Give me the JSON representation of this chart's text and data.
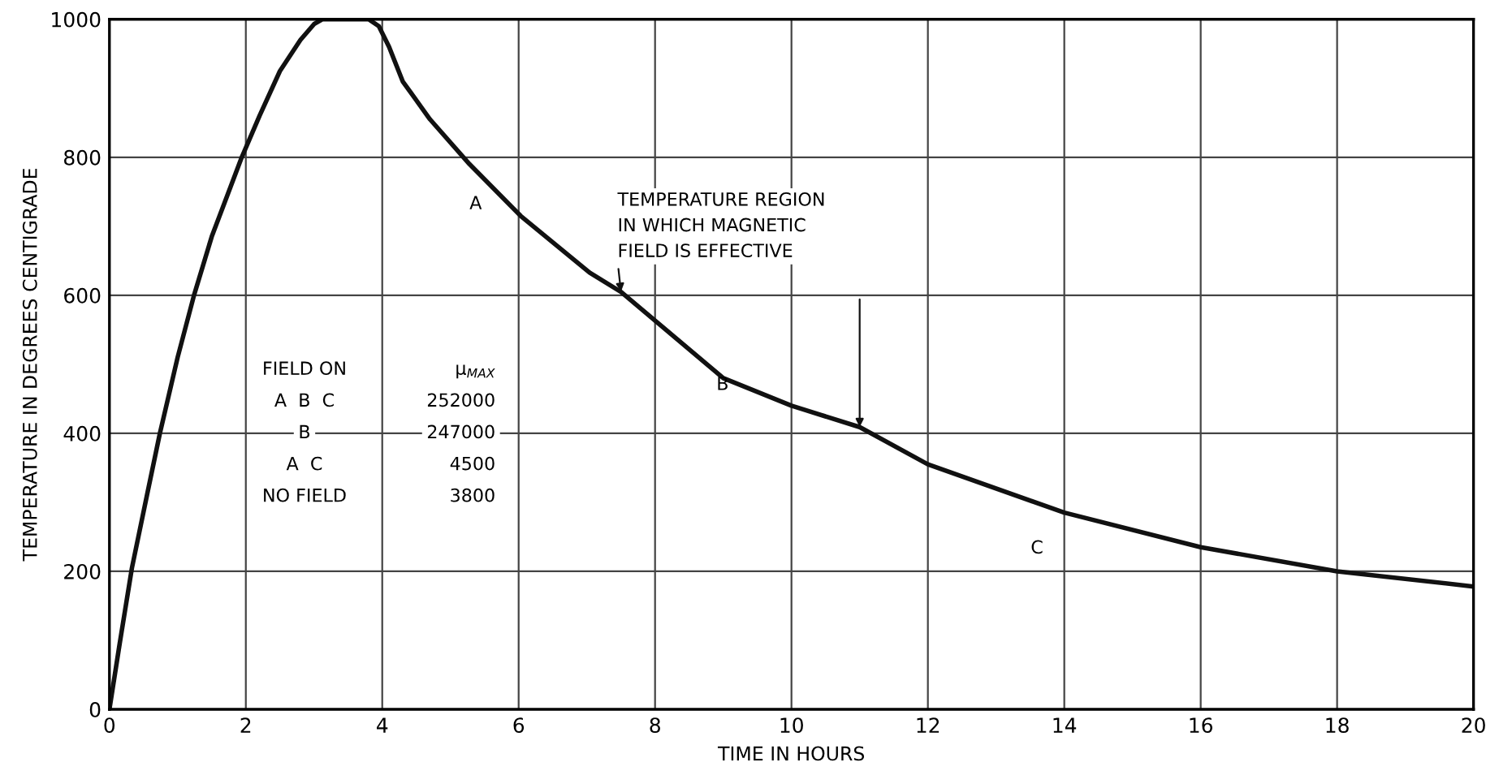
{
  "chart_data": {
    "type": "line",
    "xlabel": "TIME IN HOURS",
    "ylabel": "TEMPERATURE IN DEGREES CENTIGRADE",
    "x": [
      0,
      0.15,
      0.33,
      0.55,
      0.74,
      1.0,
      1.24,
      1.5,
      1.94,
      2.2,
      2.5,
      2.8,
      3.0,
      3.12,
      3.4,
      3.8,
      3.95,
      4.1,
      4.3,
      4.7,
      5.28,
      6.03,
      7.04,
      7.5,
      9,
      10,
      11,
      12,
      14,
      16,
      18,
      20
    ],
    "series": [
      {
        "color": "#111111",
        "values": [
          0,
          95,
          205,
          310,
          400,
          510,
          600,
          685,
          800,
          860,
          925,
          970,
          993,
          1000,
          1000,
          1000,
          990,
          960,
          910,
          855,
          790,
          715,
          633,
          605,
          480,
          440,
          409,
          355,
          285,
          235,
          200,
          178
        ]
      }
    ],
    "xlim": [
      0,
      20
    ],
    "xticks": [
      0,
      2,
      4,
      6,
      8,
      10,
      12,
      14,
      16,
      18,
      20
    ],
    "ylim": [
      0,
      1000
    ],
    "yticks": [
      0,
      200,
      400,
      600,
      800,
      1000
    ],
    "grid": true,
    "marker": "none",
    "line_style": "solid",
    "annotations": [
      {
        "text": "TEMPERATURE REGION\nIN WHICH MAGNETIC\nFIELD IS EFFECTIVE",
        "x": 7.5,
        "y": 605
      },
      "A",
      "B",
      "C",
      "FIELD ON",
      "μ$_{MAX}$",
      "A  B  C",
      "252000",
      "B",
      "247000",
      "A  C",
      "4500",
      "NO FIELD",
      "3800"
    ]
  }
}
